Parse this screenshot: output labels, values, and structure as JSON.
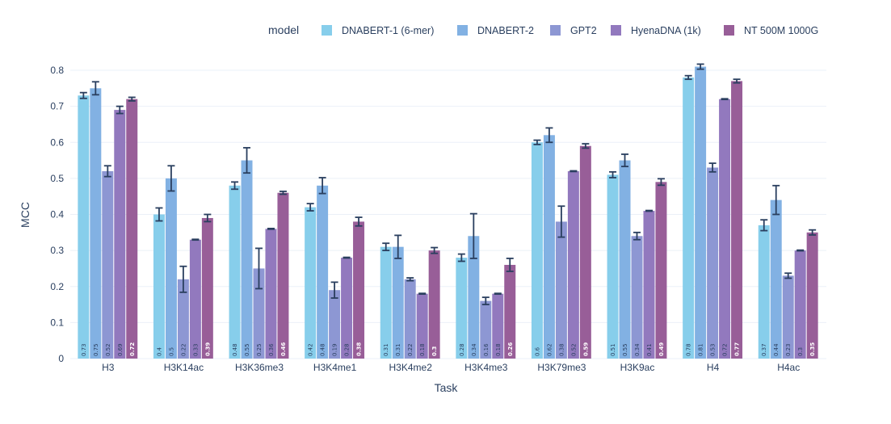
{
  "chart_data": {
    "type": "bar",
    "xlabel": "Task",
    "ylabel": "MCC",
    "ylim": [
      0,
      0.82
    ],
    "yticks": [
      "0",
      "0.1",
      "0.2",
      "0.3",
      "0.4",
      "0.5",
      "0.6",
      "0.7",
      "0.8"
    ],
    "grid": true,
    "legend_title": "model",
    "legend_position": "top-right",
    "categories": [
      "H3",
      "H3K14ac",
      "H3K36me3",
      "H3K4me1",
      "H3K4me2",
      "H3K4me3",
      "H3K79me3",
      "H3K9ac",
      "H4",
      "H4ac"
    ],
    "series": [
      {
        "name": "DNABERT-1 (6-mer)",
        "color": "#87CEEB",
        "values": [
          0.73,
          0.4,
          0.48,
          0.42,
          0.31,
          0.28,
          0.6,
          0.51,
          0.78,
          0.37
        ],
        "errors": [
          0.008,
          0.018,
          0.01,
          0.01,
          0.01,
          0.01,
          0.006,
          0.008,
          0.005,
          0.015
        ]
      },
      {
        "name": "DNABERT-2",
        "color": "#82B1E3",
        "values": [
          0.75,
          0.5,
          0.55,
          0.48,
          0.31,
          0.34,
          0.62,
          0.55,
          0.81,
          0.44
        ],
        "errors": [
          0.018,
          0.035,
          0.035,
          0.022,
          0.032,
          0.062,
          0.02,
          0.017,
          0.007,
          0.04
        ]
      },
      {
        "name": "GPT2",
        "color": "#8D97D3",
        "values": [
          0.52,
          0.22,
          0.25,
          0.19,
          0.22,
          0.16,
          0.38,
          0.34,
          0.53,
          0.23
        ],
        "errors": [
          0.015,
          0.036,
          0.056,
          0.022,
          0.004,
          0.01,
          0.043,
          0.01,
          0.012,
          0.007
        ]
      },
      {
        "name": "HyenaDNA (1k)",
        "color": "#9279BE",
        "values": [
          0.69,
          0.33,
          0.36,
          0.28,
          0.18,
          0.18,
          0.52,
          0.41,
          0.72,
          0.3
        ],
        "errors": [
          0.01,
          0.001,
          0.001,
          0.001,
          0.001,
          0.001,
          0.001,
          0.001,
          0.001,
          0.001
        ]
      },
      {
        "name": "NT 500M 1000G",
        "color": "#985E98",
        "values": [
          0.72,
          0.39,
          0.46,
          0.38,
          0.3,
          0.26,
          0.59,
          0.49,
          0.77,
          0.35
        ],
        "errors": [
          0.005,
          0.01,
          0.004,
          0.012,
          0.008,
          0.018,
          0.006,
          0.009,
          0.005,
          0.007
        ]
      }
    ]
  }
}
